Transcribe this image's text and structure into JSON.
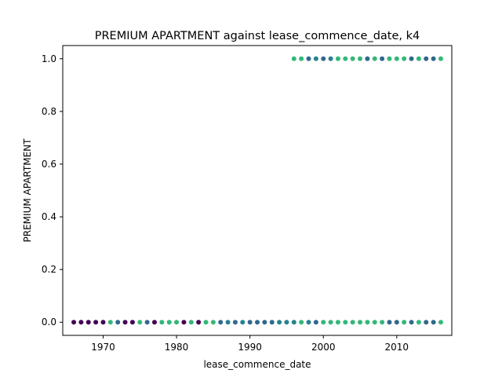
{
  "chart_data": {
    "type": "scatter",
    "title": "PREMIUM APARTMENT against lease_commence_date, k4",
    "xlabel": "lease_commence_date",
    "ylabel": "PREMIUM APARTMENT",
    "xlim": [
      1964.5,
      2017.5
    ],
    "ylim": [
      -0.05,
      1.05
    ],
    "xticks": [
      1970,
      1980,
      1990,
      2000,
      2010
    ],
    "yticks": [
      0.0,
      0.2,
      0.4,
      0.6,
      0.8,
      1.0
    ],
    "ytick_labels": [
      "0.0",
      "0.2",
      "0.4",
      "0.6",
      "0.8",
      "1.0"
    ],
    "grid": false,
    "colors": {
      "k0": "#440154",
      "k1": "#31688e",
      "k2": "#35b779",
      "k3": "#26828e"
    },
    "points": [
      {
        "x": 1966,
        "y": 0,
        "c": "k0"
      },
      {
        "x": 1967,
        "y": 0,
        "c": "k0"
      },
      {
        "x": 1968,
        "y": 0,
        "c": "k0"
      },
      {
        "x": 1969,
        "y": 0,
        "c": "k0"
      },
      {
        "x": 1970,
        "y": 0,
        "c": "k0"
      },
      {
        "x": 1971,
        "y": 0,
        "c": "k2"
      },
      {
        "x": 1972,
        "y": 0,
        "c": "k1"
      },
      {
        "x": 1973,
        "y": 0,
        "c": "k0"
      },
      {
        "x": 1974,
        "y": 0,
        "c": "k0"
      },
      {
        "x": 1975,
        "y": 0,
        "c": "k2"
      },
      {
        "x": 1976,
        "y": 0,
        "c": "k1"
      },
      {
        "x": 1977,
        "y": 0,
        "c": "k0"
      },
      {
        "x": 1978,
        "y": 0,
        "c": "k2"
      },
      {
        "x": 1979,
        "y": 0,
        "c": "k2"
      },
      {
        "x": 1980,
        "y": 0,
        "c": "k2"
      },
      {
        "x": 1981,
        "y": 0,
        "c": "k0"
      },
      {
        "x": 1982,
        "y": 0,
        "c": "k2"
      },
      {
        "x": 1983,
        "y": 0,
        "c": "k0"
      },
      {
        "x": 1984,
        "y": 0,
        "c": "k2"
      },
      {
        "x": 1985,
        "y": 0,
        "c": "k2"
      },
      {
        "x": 1986,
        "y": 0,
        "c": "k1"
      },
      {
        "x": 1987,
        "y": 0,
        "c": "k3"
      },
      {
        "x": 1988,
        "y": 0,
        "c": "k1"
      },
      {
        "x": 1989,
        "y": 0,
        "c": "k3"
      },
      {
        "x": 1990,
        "y": 0,
        "c": "k1"
      },
      {
        "x": 1991,
        "y": 0,
        "c": "k1"
      },
      {
        "x": 1992,
        "y": 0,
        "c": "k1"
      },
      {
        "x": 1993,
        "y": 0,
        "c": "k1"
      },
      {
        "x": 1994,
        "y": 0,
        "c": "k3"
      },
      {
        "x": 1995,
        "y": 0,
        "c": "k3"
      },
      {
        "x": 1996,
        "y": 0,
        "c": "k3"
      },
      {
        "x": 1997,
        "y": 0,
        "c": "k2"
      },
      {
        "x": 1998,
        "y": 0,
        "c": "k3"
      },
      {
        "x": 1999,
        "y": 0,
        "c": "k1"
      },
      {
        "x": 2000,
        "y": 0,
        "c": "k2"
      },
      {
        "x": 2001,
        "y": 0,
        "c": "k2"
      },
      {
        "x": 2002,
        "y": 0,
        "c": "k2"
      },
      {
        "x": 2003,
        "y": 0,
        "c": "k2"
      },
      {
        "x": 2004,
        "y": 0,
        "c": "k2"
      },
      {
        "x": 2005,
        "y": 0,
        "c": "k2"
      },
      {
        "x": 2006,
        "y": 0,
        "c": "k2"
      },
      {
        "x": 2007,
        "y": 0,
        "c": "k2"
      },
      {
        "x": 2008,
        "y": 0,
        "c": "k2"
      },
      {
        "x": 2009,
        "y": 0,
        "c": "k1"
      },
      {
        "x": 2010,
        "y": 0,
        "c": "k1"
      },
      {
        "x": 2011,
        "y": 0,
        "c": "k2"
      },
      {
        "x": 2012,
        "y": 0,
        "c": "k1"
      },
      {
        "x": 2013,
        "y": 0,
        "c": "k2"
      },
      {
        "x": 2014,
        "y": 0,
        "c": "k1"
      },
      {
        "x": 2015,
        "y": 0,
        "c": "k1"
      },
      {
        "x": 2016,
        "y": 0,
        "c": "k2"
      },
      {
        "x": 1996,
        "y": 1,
        "c": "k2"
      },
      {
        "x": 1997,
        "y": 1,
        "c": "k2"
      },
      {
        "x": 1998,
        "y": 1,
        "c": "k1"
      },
      {
        "x": 1999,
        "y": 1,
        "c": "k3"
      },
      {
        "x": 2000,
        "y": 1,
        "c": "k1"
      },
      {
        "x": 2001,
        "y": 1,
        "c": "k3"
      },
      {
        "x": 2002,
        "y": 1,
        "c": "k2"
      },
      {
        "x": 2003,
        "y": 1,
        "c": "k2"
      },
      {
        "x": 2004,
        "y": 1,
        "c": "k2"
      },
      {
        "x": 2005,
        "y": 1,
        "c": "k2"
      },
      {
        "x": 2006,
        "y": 1,
        "c": "k1"
      },
      {
        "x": 2007,
        "y": 1,
        "c": "k2"
      },
      {
        "x": 2008,
        "y": 1,
        "c": "k1"
      },
      {
        "x": 2009,
        "y": 1,
        "c": "k2"
      },
      {
        "x": 2010,
        "y": 1,
        "c": "k2"
      },
      {
        "x": 2011,
        "y": 1,
        "c": "k2"
      },
      {
        "x": 2012,
        "y": 1,
        "c": "k1"
      },
      {
        "x": 2013,
        "y": 1,
        "c": "k2"
      },
      {
        "x": 2014,
        "y": 1,
        "c": "k1"
      },
      {
        "x": 2015,
        "y": 1,
        "c": "k1"
      },
      {
        "x": 2016,
        "y": 1,
        "c": "k2"
      }
    ]
  }
}
